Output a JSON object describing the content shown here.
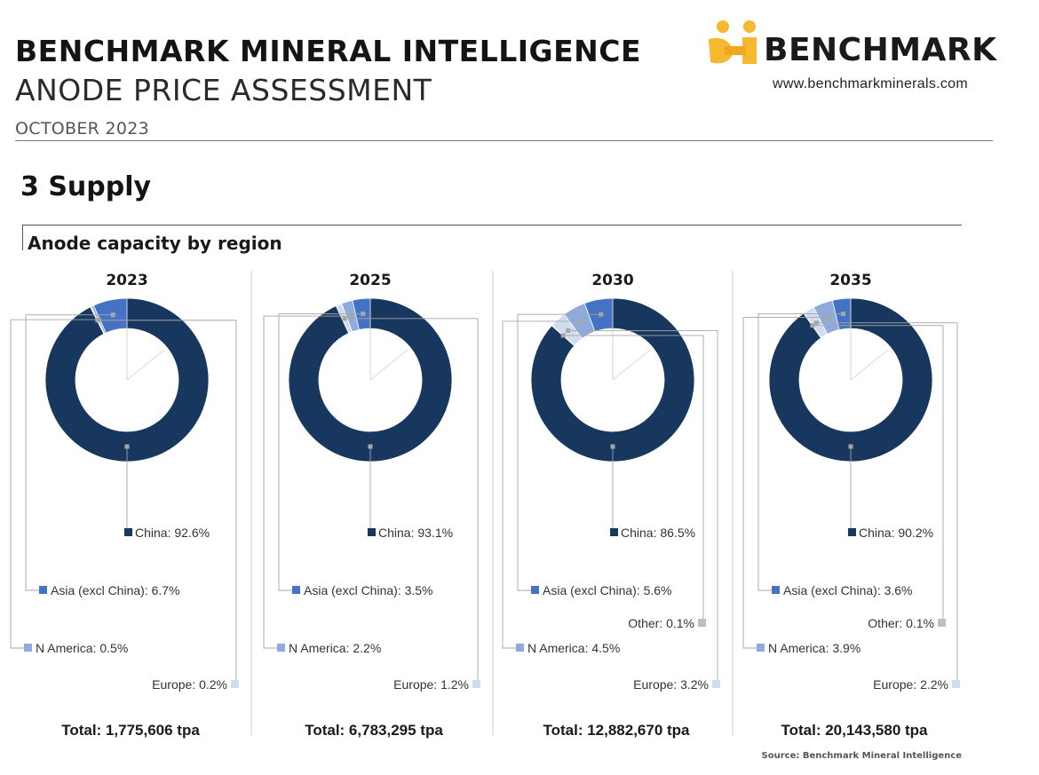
{
  "header": {
    "line1": "BENCHMARK MINERAL INTELLIGENCE",
    "line2": "ANODE PRICE ASSESSMENT",
    "date": "OCTOBER 2023",
    "logo_text": "BENCHMARK",
    "url": "www.benchmarkminerals.com"
  },
  "section_title": "3 Supply",
  "chart_title": "Anode capacity by region",
  "source": "Source: Benchmark Mineral Intelligence",
  "colors": {
    "China": "#17375e",
    "Asia (excl China)": "#4472c4",
    "N America": "#8faadc",
    "Europe": "#d0ddf0",
    "Other": "#bfbfbf",
    "logo_yellow": "#f5b82e"
  },
  "chart_data": [
    {
      "type": "pie",
      "title": "2023",
      "total_label": "Total: 1,775,606 tpa",
      "slices": [
        {
          "name": "China",
          "value": 92.6,
          "label": "China: 92.6%"
        },
        {
          "name": "Asia (excl China)",
          "value": 6.7,
          "label": "Asia (excl China): 6.7%"
        },
        {
          "name": "N America",
          "value": 0.5,
          "label": "N America: 0.5%"
        },
        {
          "name": "Europe",
          "value": 0.2,
          "label": "Europe: 0.2%"
        }
      ]
    },
    {
      "type": "pie",
      "title": "2025",
      "total_label": "Total: 6,783,295 tpa",
      "slices": [
        {
          "name": "China",
          "value": 93.1,
          "label": "China: 93.1%"
        },
        {
          "name": "Asia (excl China)",
          "value": 3.5,
          "label": "Asia (excl China): 3.5%"
        },
        {
          "name": "N America",
          "value": 2.2,
          "label": "N America: 2.2%"
        },
        {
          "name": "Europe",
          "value": 1.2,
          "label": "Europe: 1.2%"
        }
      ]
    },
    {
      "type": "pie",
      "title": "2030",
      "total_label": "Total: 12,882,670 tpa",
      "slices": [
        {
          "name": "China",
          "value": 86.5,
          "label": "China: 86.5%"
        },
        {
          "name": "Asia (excl China)",
          "value": 5.6,
          "label": "Asia (excl China): 5.6%"
        },
        {
          "name": "N America",
          "value": 4.5,
          "label": "N America: 4.5%"
        },
        {
          "name": "Europe",
          "value": 3.2,
          "label": "Europe: 3.2%"
        },
        {
          "name": "Other",
          "value": 0.1,
          "label": "Other: 0.1%"
        }
      ]
    },
    {
      "type": "pie",
      "title": "2035",
      "total_label": "Total: 20,143,580 tpa",
      "slices": [
        {
          "name": "China",
          "value": 90.2,
          "label": "China: 90.2%"
        },
        {
          "name": "Asia (excl China)",
          "value": 3.6,
          "label": "Asia (excl China): 3.6%"
        },
        {
          "name": "N America",
          "value": 3.9,
          "label": "N America: 3.9%"
        },
        {
          "name": "Europe",
          "value": 2.2,
          "label": "Europe: 2.2%"
        },
        {
          "name": "Other",
          "value": 0.1,
          "label": "Other: 0.1%"
        }
      ]
    }
  ]
}
